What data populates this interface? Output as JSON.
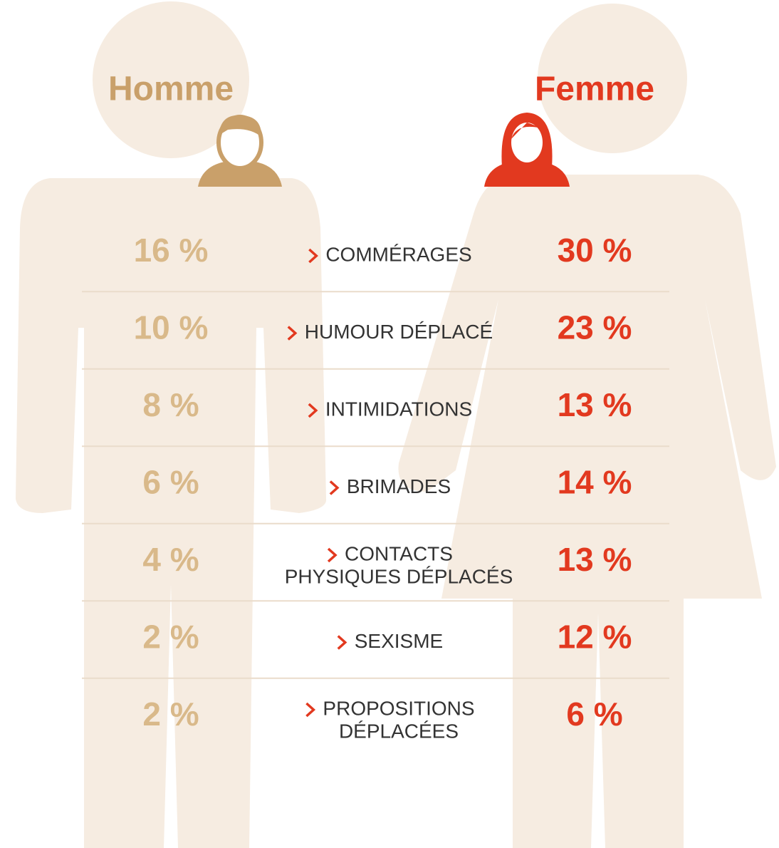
{
  "header": {
    "left": "Homme",
    "right": "Femme"
  },
  "rows": [
    {
      "homme": "16 %",
      "label": [
        "COMMÉRAGES"
      ],
      "femme": "30 %"
    },
    {
      "homme": "10 %",
      "label": [
        "HUMOUR DÉPLACÉ"
      ],
      "femme": "23 %"
    },
    {
      "homme": "8 %",
      "label": [
        "INTIMIDATIONS"
      ],
      "femme": "13 %"
    },
    {
      "homme": "6 %",
      "label": [
        "BRIMADES"
      ],
      "femme": "14 %"
    },
    {
      "homme": "4 %",
      "label": [
        "CONTACTS",
        "PHYSIQUES DÉPLACÉS"
      ],
      "femme": "13 %"
    },
    {
      "homme": "2 %",
      "label": [
        "SEXISME"
      ],
      "femme": "12 %"
    },
    {
      "homme": "2 %",
      "label": [
        "PROPOSITIONS",
        "DÉPLACÉES"
      ],
      "femme": "6 %"
    }
  ]
}
